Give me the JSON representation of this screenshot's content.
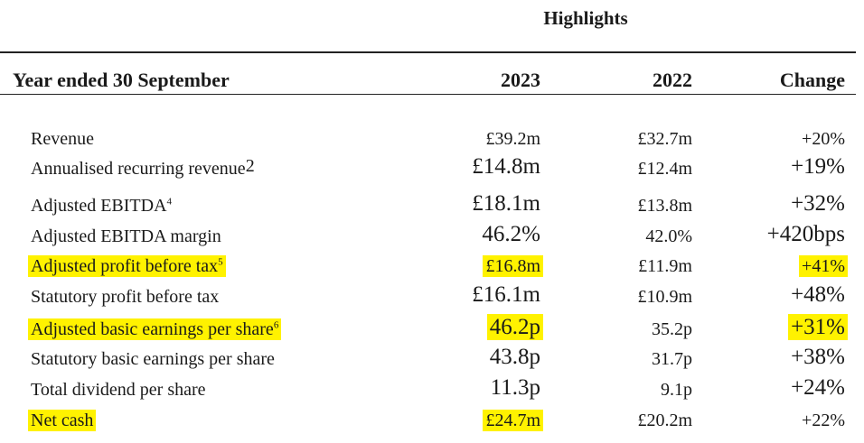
{
  "title": "Highlights",
  "header": {
    "label": "Year ended 30 September",
    "col_2023": "2023",
    "col_2022": "2022",
    "col_change": "Change"
  },
  "rows": [
    {
      "label": "Revenue",
      "sup": "",
      "v2023": "£39.2m",
      "v2022": "£32.7m",
      "change": "+20%",
      "highlight": false
    },
    {
      "label": "Annualised recurring revenue",
      "sup": "2",
      "v2023": "£14.8m",
      "v2022": "£12.4m",
      "change": "+19%",
      "highlight": false
    },
    {
      "label": "Adjusted EBITDA",
      "sup": "4",
      "v2023": "£18.1m",
      "v2022": "£13.8m",
      "change": "+32%",
      "highlight": false
    },
    {
      "label": "Adjusted EBITDA margin",
      "sup": "",
      "v2023": "46.2%",
      "v2022": "42.0%",
      "change": "+420bps",
      "highlight": false
    },
    {
      "label": "Adjusted profit before tax",
      "sup": "5",
      "v2023": "£16.8m",
      "v2022": "£11.9m",
      "change": "+41%",
      "highlight": true
    },
    {
      "label": "Statutory profit before tax",
      "sup": "",
      "v2023": "£16.1m",
      "v2022": "£10.9m",
      "change": "+48%",
      "highlight": false
    },
    {
      "label": "Adjusted basic earnings per share",
      "sup": "6",
      "v2023": "46.2p",
      "v2022": "35.2p",
      "change": "+31%",
      "highlight": true
    },
    {
      "label": "Statutory basic earnings per share",
      "sup": "",
      "v2023": "43.8p",
      "v2022": "31.7p",
      "change": "+38%",
      "highlight": false
    },
    {
      "label": "Total dividend per share",
      "sup": "",
      "v2023": "11.3p",
      "v2022": "9.1p",
      "change": "+24%",
      "highlight": false
    },
    {
      "label": "Net cash",
      "sup": "",
      "v2023": "£24.7m",
      "v2022": "£20.2m",
      "change": "+22%",
      "highlight": true
    }
  ],
  "highlight_color": "#fff200"
}
